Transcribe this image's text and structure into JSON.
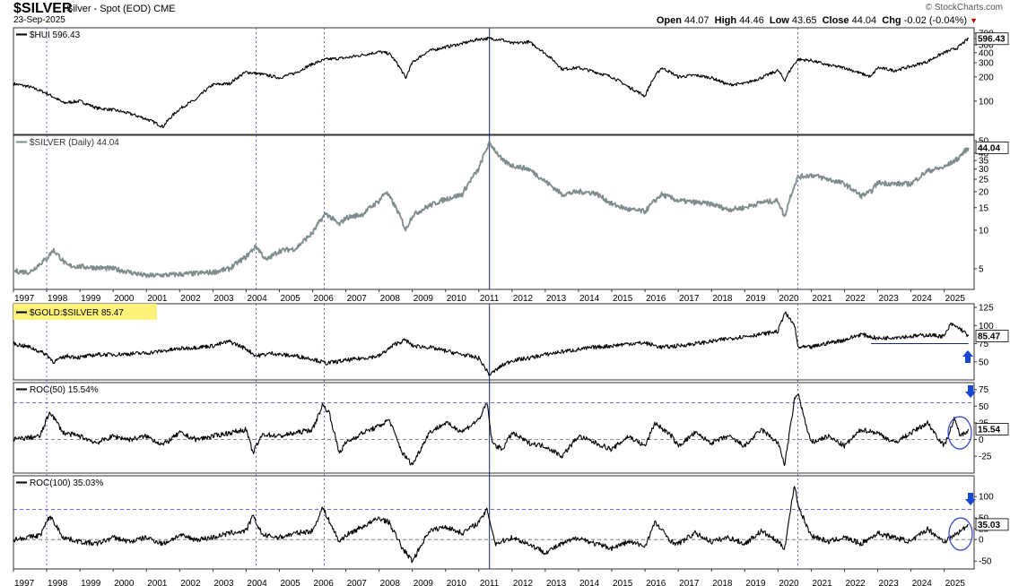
{
  "header": {
    "symbol": "$SILVER",
    "name": "Silver - Spot (EOD)",
    "exchange": "CME",
    "date": "23-Sep-2025",
    "brand": "© StockCharts.com",
    "open_label": "Open",
    "open": "44.07",
    "high_label": "High",
    "high": "44.46",
    "low_label": "Low",
    "low": "43.65",
    "close_label": "Close",
    "close": "44.04",
    "chg_label": "Chg",
    "chg": "-0.02 (-0.04%)",
    "down_marker": "▼"
  },
  "colors": {
    "hui_line": "#000000",
    "silver_line": "#7f8c8d",
    "ratio_line": "#000000",
    "roc_line": "#000000",
    "grid_dotted": "#3b3bd6",
    "event_line": "#1a237e",
    "label_highlight": "#fff27a",
    "arrow_blue": "#1846d6"
  },
  "chart_data": [
    {
      "type": "line",
      "panel": "hui",
      "title": "$HUI 596.43",
      "series": [
        {
          "name": "$HUI",
          "x": [
            1997,
            1997.5,
            1998,
            1998.5,
            1999,
            1999.5,
            2000,
            2000.5,
            2001,
            2001.5,
            2002,
            2002.5,
            2003,
            2003.5,
            2004,
            2004.5,
            2005,
            2005.5,
            2006,
            2006.4,
            2006.8,
            2007,
            2007.5,
            2008,
            2008.3,
            2008.8,
            2009,
            2009.5,
            2010,
            2010.5,
            2011,
            2011.3,
            2011.7,
            2012,
            2012.5,
            2013,
            2013.5,
            2014,
            2014.5,
            2015,
            2015.5,
            2016,
            2016.5,
            2017,
            2017.5,
            2018,
            2018.5,
            2019,
            2019.5,
            2020,
            2020.2,
            2020.6,
            2021,
            2021.5,
            2022,
            2022.5,
            2022.8,
            2023,
            2023.5,
            2024,
            2024.5,
            2025,
            2025.4,
            2025.73
          ],
          "values": [
            165,
            150,
            125,
            95,
            100,
            82,
            78,
            70,
            60,
            48,
            80,
            105,
            160,
            165,
            230,
            215,
            195,
            225,
            290,
            330,
            340,
            345,
            375,
            410,
            390,
            190,
            300,
            420,
            470,
            520,
            590,
            600,
            580,
            520,
            545,
            390,
            250,
            260,
            230,
            200,
            150,
            115,
            260,
            200,
            210,
            195,
            160,
            165,
            195,
            240,
            180,
            330,
            320,
            280,
            260,
            220,
            200,
            260,
            240,
            270,
            310,
            400,
            460,
            596.43
          ]
        }
      ],
      "y_axis": {
        "scale": "log",
        "ticks": [
          100,
          200,
          300,
          400,
          500,
          600,
          700
        ]
      },
      "last_value_label": "596.43"
    },
    {
      "type": "line",
      "panel": "silver",
      "title": "$SILVER (Daily) 44.04",
      "series": [
        {
          "name": "$SILVER",
          "x": [
            1997,
            1997.5,
            1998,
            1998.2,
            1998.6,
            1999,
            1999.5,
            2000,
            2001,
            2001.8,
            2002.5,
            2003,
            2003.5,
            2004,
            2004.3,
            2004.6,
            2005,
            2005.5,
            2006,
            2006.4,
            2006.8,
            2007,
            2007.5,
            2008,
            2008.2,
            2008.8,
            2009,
            2009.5,
            2010,
            2010.5,
            2011,
            2011.32,
            2011.7,
            2012,
            2012.5,
            2013,
            2013.5,
            2014,
            2014.5,
            2015,
            2015.5,
            2016,
            2016.5,
            2017,
            2017.5,
            2018,
            2018.5,
            2019,
            2019.5,
            2020,
            2020.2,
            2020.6,
            2021,
            2021.5,
            2022,
            2022.5,
            2022.8,
            2023,
            2023.5,
            2024,
            2024.5,
            2025,
            2025.4,
            2025.73
          ],
          "values": [
            4.8,
            4.7,
            6.0,
            7.0,
            5.3,
            5.2,
            5.1,
            5.0,
            4.4,
            4.5,
            4.6,
            4.7,
            5.0,
            6.2,
            7.5,
            5.8,
            6.9,
            7.2,
            9.5,
            13.5,
            11,
            12.5,
            13.3,
            17,
            20,
            10,
            13,
            15.5,
            17.5,
            19,
            30,
            48,
            35,
            32,
            30,
            24,
            19,
            20,
            19.5,
            16,
            14.5,
            14,
            19,
            17,
            16.5,
            16,
            14.5,
            15,
            16.5,
            17,
            12.5,
            26,
            27,
            25,
            23,
            18.5,
            20,
            23.5,
            23,
            23,
            29,
            31,
            36,
            44.04
          ]
        }
      ],
      "y_axis": {
        "scale": "log",
        "ticks": [
          5,
          10,
          15,
          20,
          25,
          30,
          35,
          40,
          50
        ]
      },
      "last_value_label": "44.04"
    },
    {
      "type": "line",
      "panel": "gold_silver_ratio",
      "title": "$GOLD:$SILVER 85.47",
      "series": [
        {
          "name": "$GOLD:$SILVER",
          "x": [
            1997,
            1997.5,
            1998,
            1998.2,
            1998.6,
            1999,
            1999.5,
            2000,
            2001,
            2002,
            2003,
            2003.5,
            2004,
            2004.3,
            2004.8,
            2005,
            2005.5,
            2006,
            2006.4,
            2007,
            2007.5,
            2008,
            2008.5,
            2008.8,
            2009,
            2009.5,
            2010,
            2010.5,
            2011,
            2011.32,
            2011.7,
            2012,
            2012.5,
            2013,
            2013.5,
            2014,
            2014.5,
            2015,
            2015.5,
            2016,
            2016.5,
            2017,
            2017.5,
            2018,
            2018.5,
            2019,
            2019.5,
            2020,
            2020.2,
            2020.5,
            2020.6,
            2021,
            2021.5,
            2022,
            2022.5,
            2023,
            2023.5,
            2024,
            2024.5,
            2025,
            2025.2,
            2025.5,
            2025.73
          ],
          "values": [
            75,
            70,
            60,
            50,
            58,
            56,
            60,
            60,
            62,
            68,
            72,
            78,
            68,
            58,
            62,
            60,
            58,
            54,
            48,
            52,
            55,
            58,
            75,
            80,
            72,
            70,
            65,
            60,
            55,
            32,
            45,
            52,
            55,
            60,
            64,
            67,
            70,
            72,
            75,
            76,
            70,
            72,
            75,
            78,
            82,
            85,
            88,
            92,
            118,
            100,
            70,
            70,
            76,
            80,
            88,
            82,
            84,
            85,
            87,
            85,
            102,
            95,
            85.47
          ]
        }
      ],
      "y_axis": {
        "scale": "linear",
        "ticks": [
          50,
          75,
          100,
          125
        ]
      },
      "reference_line": 75,
      "last_value_label": "85.47"
    },
    {
      "type": "line",
      "panel": "roc50",
      "title": "ROC(50) 15.54%",
      "series": [
        {
          "name": "ROC(50)",
          "x": [
            1997,
            1997.8,
            1998.1,
            1998.5,
            1999,
            1999.5,
            2000,
            2000.5,
            2001,
            2001.5,
            2002,
            2002.5,
            2003,
            2003.5,
            2004,
            2004.2,
            2004.5,
            2005,
            2005.5,
            2006,
            2006.3,
            2006.5,
            2006.8,
            2007,
            2007.5,
            2008,
            2008.3,
            2008.7,
            2009,
            2009.5,
            2010,
            2010.5,
            2011,
            2011.25,
            2011.4,
            2011.7,
            2012,
            2012.5,
            2013,
            2013.5,
            2014,
            2014.5,
            2015,
            2015.5,
            2016,
            2016.3,
            2016.8,
            2017,
            2017.5,
            2018,
            2018.5,
            2019,
            2019.5,
            2020,
            2020.2,
            2020.5,
            2020.6,
            2020.9,
            2021,
            2021.5,
            2022,
            2022.5,
            2023,
            2023.5,
            2024,
            2024.5,
            2025,
            2025.3,
            2025.5,
            2025.73
          ],
          "values": [
            0,
            5,
            42,
            10,
            5,
            -5,
            5,
            0,
            5,
            -8,
            10,
            0,
            5,
            10,
            15,
            -20,
            8,
            5,
            10,
            15,
            52,
            40,
            -20,
            -5,
            10,
            20,
            30,
            -20,
            -38,
            10,
            25,
            12,
            30,
            55,
            -5,
            -15,
            10,
            -5,
            -10,
            -25,
            5,
            -5,
            -15,
            5,
            -10,
            25,
            5,
            -10,
            10,
            -5,
            5,
            -10,
            15,
            -5,
            -38,
            60,
            70,
            10,
            -5,
            5,
            -10,
            15,
            10,
            -5,
            10,
            25,
            -10,
            30,
            5,
            15.54
          ]
        }
      ],
      "y_axis": {
        "scale": "linear",
        "ticks": [
          -25,
          0,
          25,
          50,
          75
        ]
      },
      "reference_lines": [
        0,
        55
      ],
      "last_value_label": "15.54"
    },
    {
      "type": "line",
      "panel": "roc100",
      "title": "ROC(100) 35.03%",
      "series": [
        {
          "name": "ROC(100)",
          "x": [
            1997,
            1997.8,
            1998.1,
            1998.5,
            1999,
            1999.5,
            2000,
            2000.5,
            2001,
            2001.5,
            2002,
            2002.5,
            2003,
            2003.5,
            2004,
            2004.2,
            2004.5,
            2005,
            2005.5,
            2006,
            2006.3,
            2006.8,
            2007,
            2007.5,
            2008,
            2008.3,
            2008.7,
            2009,
            2009.5,
            2010,
            2010.5,
            2011,
            2011.25,
            2011.5,
            2012,
            2012.5,
            2013,
            2013.5,
            2014,
            2014.5,
            2015,
            2015.5,
            2016,
            2016.3,
            2016.8,
            2017,
            2017.5,
            2018,
            2018.5,
            2019,
            2019.5,
            2020,
            2020.2,
            2020.5,
            2020.6,
            2020.9,
            2021,
            2021.5,
            2022,
            2022.5,
            2023,
            2023.5,
            2024,
            2024.5,
            2025,
            2025.3,
            2025.5,
            2025.73
          ],
          "values": [
            0,
            10,
            55,
            5,
            -5,
            -10,
            5,
            -5,
            5,
            -10,
            10,
            0,
            5,
            15,
            20,
            55,
            10,
            5,
            15,
            20,
            75,
            -5,
            10,
            30,
            50,
            40,
            -20,
            -50,
            20,
            30,
            15,
            40,
            70,
            -10,
            5,
            -10,
            -30,
            -10,
            5,
            -10,
            -20,
            -5,
            -15,
            40,
            -5,
            -10,
            15,
            -5,
            5,
            -10,
            20,
            -5,
            -20,
            130,
            80,
            25,
            10,
            -5,
            5,
            -10,
            15,
            5,
            -5,
            25,
            -5,
            10,
            20,
            35.03
          ]
        }
      ],
      "y_axis": {
        "scale": "linear",
        "ticks": [
          -50,
          0,
          25,
          50,
          100
        ]
      },
      "reference_lines": [
        0,
        70
      ],
      "last_value_label": "35.03"
    }
  ],
  "x_axis": {
    "year_labels": [
      "1997",
      "1998",
      "1999",
      "2000",
      "2001",
      "2002",
      "2003",
      "2004",
      "2005",
      "2006",
      "2007",
      "2008",
      "2009",
      "2010",
      "2011",
      "2012",
      "2013",
      "2014",
      "2015",
      "2016",
      "2017",
      "2018",
      "2019",
      "2020",
      "2021",
      "2022",
      "2023",
      "2024",
      "2025"
    ],
    "event_marks": [
      1998.0,
      2004.3,
      2006.35,
      2011.32,
      2020.6
    ]
  }
}
